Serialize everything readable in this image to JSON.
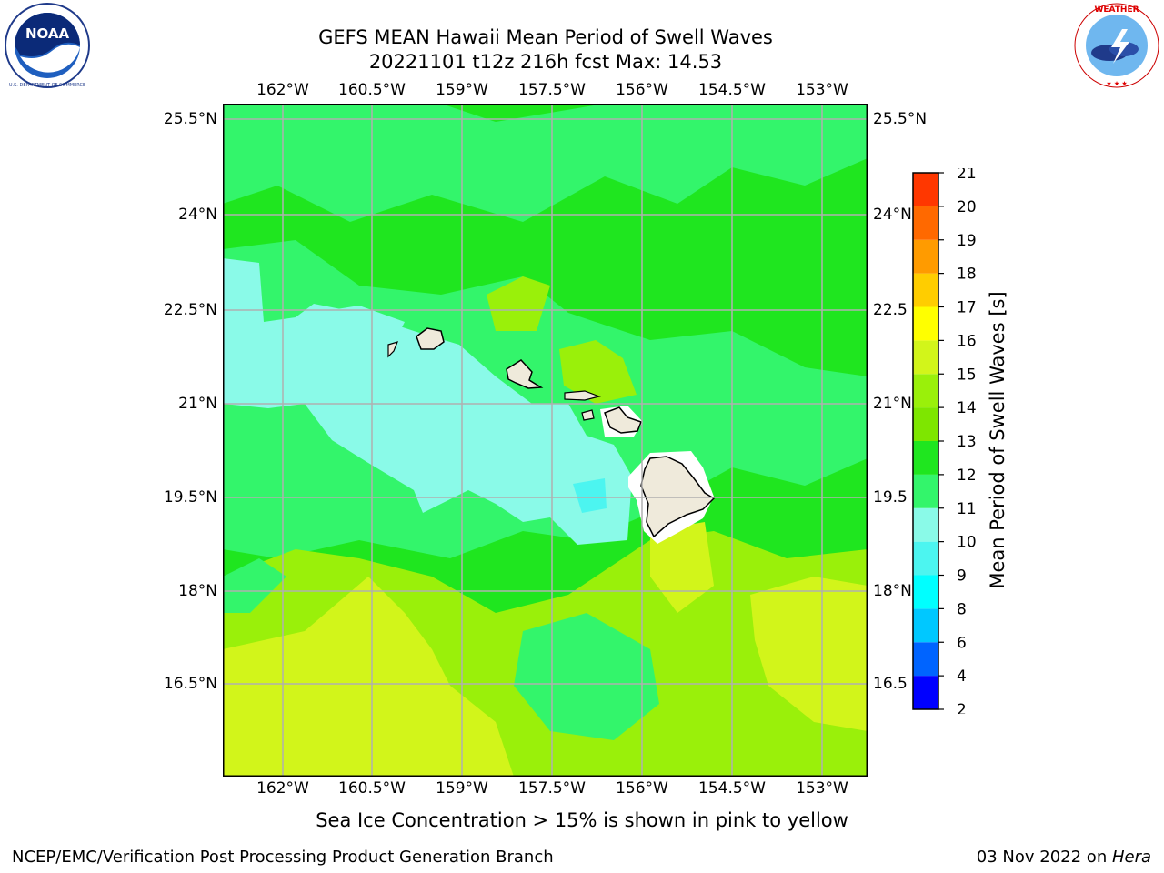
{
  "header": {
    "title_line1": "GEFS MEAN Hawaii Mean Period of Swell Waves",
    "title_line2": "20221101 t12z 216h fcst   Max: 14.53"
  },
  "logos": {
    "noaa_text": "NOAA",
    "noaa_ring": "NATIONAL OCEANIC AND ATMOSPHERIC ADMINISTRATION · U.S. DEPARTMENT OF COMMERCE",
    "nws_ring": "NATIONAL WEATHER SERVICE"
  },
  "map": {
    "lon_labels": [
      "162°W",
      "160.5°W",
      "159°W",
      "157.5°W",
      "156°W",
      "154.5°W",
      "153°W"
    ],
    "lat_labels": [
      "25.5°N",
      "24°N",
      "22.5°N",
      "21°N",
      "19.5°N",
      "18°N",
      "16.5°N"
    ],
    "lat_labels_right": [
      "25.5°N",
      "24°N",
      "22.5",
      "21°N",
      "19.5",
      "18°N",
      "16.5"
    ],
    "lon_extent": [
      -163,
      -152.3
    ],
    "lat_extent": [
      15.0,
      25.7
    ],
    "grid": true,
    "field_colors": {
      "green_11_12": "#1fe61f",
      "green_10_11": "#33f56b",
      "cyan_9_10": "#8afae8",
      "cyan_8_9": "#4cf5f0",
      "lime_12_13": "#9af00a",
      "yellow_13_14": "#d2f51a",
      "land": "#efeadb"
    }
  },
  "colorbar": {
    "label": "Mean Period of Swell Waves [s]",
    "ticks": [
      "2",
      "4",
      "6",
      "8",
      "9",
      "10",
      "11",
      "12",
      "13",
      "14",
      "15",
      "16",
      "17",
      "18",
      "19",
      "20",
      "21"
    ],
    "colors": [
      "#0000ff",
      "#0064ff",
      "#00c8ff",
      "#00ffff",
      "#4cf5f0",
      "#8afae8",
      "#33f56b",
      "#1fe61f",
      "#7ee600",
      "#9af00a",
      "#d2f51a",
      "#ffff00",
      "#ffcd00",
      "#ff9b00",
      "#ff6900",
      "#ff3700",
      "#ff0000"
    ]
  },
  "note": "Sea Ice Concentration > 15% is shown in pink to yellow",
  "footer": {
    "left": "NCEP/EMC/Verification Post Processing Product Generation Branch",
    "right_prefix": "03 Nov 2022 on ",
    "right_host": "Hera"
  }
}
